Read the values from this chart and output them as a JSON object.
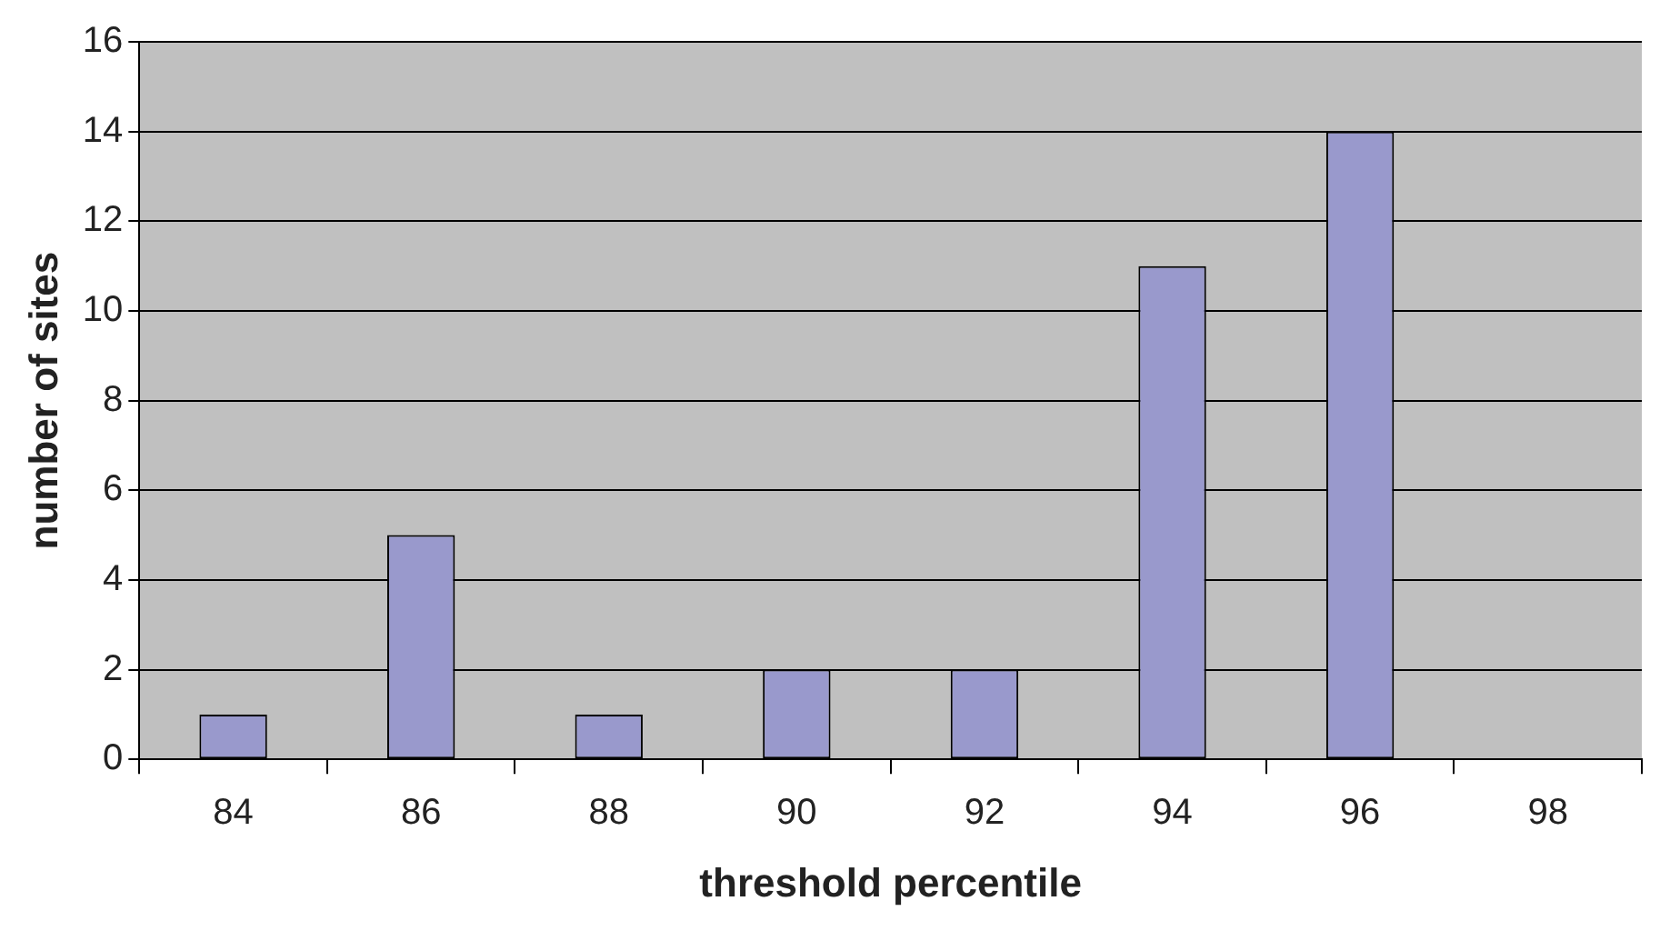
{
  "chart_data": {
    "type": "bar",
    "xlabel": "threshold percentile",
    "ylabel": "number of sites",
    "categories": [
      "84",
      "86",
      "88",
      "90",
      "92",
      "94",
      "96",
      "98"
    ],
    "values": [
      1,
      5,
      1,
      2,
      2,
      11,
      14,
      0
    ],
    "color": "#9999cc",
    "ylim": [
      0,
      16
    ],
    "yticks": [
      0,
      2,
      4,
      6,
      8,
      10,
      12,
      14,
      16
    ],
    "grid": "y"
  }
}
